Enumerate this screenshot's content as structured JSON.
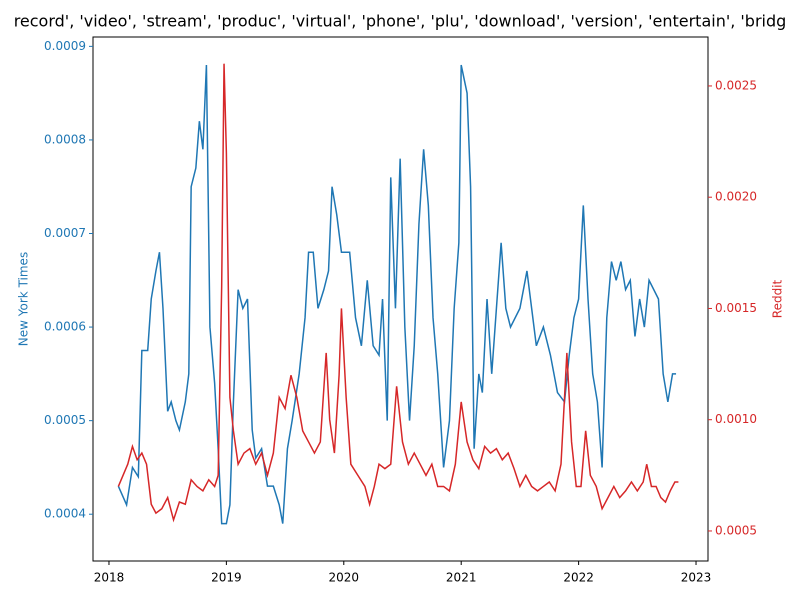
{
  "chart_data": {
    "type": "line",
    "title": "record', 'video', 'stream', 'produc', 'virtual', 'phone', 'plu', 'download', 'version', 'entertain', 'bridg",
    "y_label": "New York Times",
    "y2_label": "Reddit",
    "xlim": [
      2017.864,
      2023.102
    ],
    "xticks": [
      2018,
      2019,
      2020,
      2021,
      2022,
      2023
    ],
    "ylim": [
      0.00035,
      0.00091
    ],
    "yticks": [
      0.0004,
      0.0005,
      0.0006,
      0.0007,
      0.0008,
      0.0009
    ],
    "y2lim": [
      0.000365,
      0.00272
    ],
    "y2ticks": [
      {
        "value": 0.0005,
        "label": "0.0005"
      },
      {
        "value": 0.001,
        "label": "0.0010"
      },
      {
        "value": 0.0015,
        "label": "0.0015"
      },
      {
        "value": 0.002,
        "label": "0.0020"
      },
      {
        "value": 0.0025,
        "label": "0.0025"
      }
    ],
    "series": [
      {
        "name": "New York Times",
        "color": "#1f77b4",
        "axis": "y",
        "x": [
          2018.08,
          2018.15,
          2018.2,
          2018.25,
          2018.28,
          2018.33,
          2018.36,
          2018.4,
          2018.43,
          2018.46,
          2018.5,
          2018.53,
          2018.57,
          2018.6,
          2018.65,
          2018.68,
          2018.7,
          2018.74,
          2018.77,
          2018.8,
          2018.83,
          2018.86,
          2018.9,
          2018.93,
          2018.96,
          2019.0,
          2019.03,
          2019.06,
          2019.1,
          2019.14,
          2019.18,
          2019.22,
          2019.25,
          2019.3,
          2019.35,
          2019.4,
          2019.45,
          2019.48,
          2019.52,
          2019.56,
          2019.62,
          2019.67,
          2019.7,
          2019.74,
          2019.78,
          2019.83,
          2019.87,
          2019.9,
          2019.94,
          2019.98,
          2020.05,
          2020.1,
          2020.15,
          2020.2,
          2020.25,
          2020.3,
          2020.33,
          2020.37,
          2020.4,
          2020.44,
          2020.48,
          2020.52,
          2020.56,
          2020.6,
          2020.64,
          2020.68,
          2020.72,
          2020.76,
          2020.8,
          2020.85,
          2020.9,
          2020.94,
          2020.98,
          2021.0,
          2021.05,
          2021.08,
          2021.11,
          2021.15,
          2021.18,
          2021.22,
          2021.26,
          2021.3,
          2021.34,
          2021.38,
          2021.42,
          2021.5,
          2021.56,
          2021.6,
          2021.64,
          2021.7,
          2021.76,
          2021.82,
          2021.88,
          2021.92,
          2021.96,
          2022.0,
          2022.04,
          2022.08,
          2022.12,
          2022.16,
          2022.2,
          2022.24,
          2022.28,
          2022.32,
          2022.36,
          2022.4,
          2022.44,
          2022.48,
          2022.52,
          2022.56,
          2022.6,
          2022.64,
          2022.68,
          2022.72,
          2022.76,
          2022.8,
          2022.83
        ],
        "values": [
          0.00043,
          0.00041,
          0.00045,
          0.00044,
          0.000575,
          0.000575,
          0.00063,
          0.00066,
          0.00068,
          0.00062,
          0.00051,
          0.00052,
          0.0005,
          0.00049,
          0.00052,
          0.00055,
          0.00075,
          0.00077,
          0.00082,
          0.00079,
          0.00088,
          0.0006,
          0.00054,
          0.00047,
          0.00039,
          0.00039,
          0.00041,
          0.00052,
          0.00064,
          0.00062,
          0.00063,
          0.00049,
          0.00046,
          0.00047,
          0.00043,
          0.00043,
          0.00041,
          0.00039,
          0.00047,
          0.0005,
          0.00055,
          0.00061,
          0.00068,
          0.00068,
          0.00062,
          0.00064,
          0.00066,
          0.00075,
          0.00072,
          0.00068,
          0.00068,
          0.00061,
          0.00058,
          0.00065,
          0.00058,
          0.00057,
          0.00063,
          0.0005,
          0.00076,
          0.00062,
          0.00078,
          0.0006,
          0.0005,
          0.00058,
          0.00071,
          0.00079,
          0.00073,
          0.00061,
          0.00055,
          0.00045,
          0.0005,
          0.00062,
          0.00069,
          0.00088,
          0.00085,
          0.00075,
          0.00047,
          0.00055,
          0.00053,
          0.00063,
          0.00055,
          0.00062,
          0.00069,
          0.00062,
          0.0006,
          0.00062,
          0.00066,
          0.00062,
          0.00058,
          0.0006,
          0.00057,
          0.00053,
          0.00052,
          0.00057,
          0.00061,
          0.00063,
          0.00073,
          0.00063,
          0.00055,
          0.00052,
          0.00045,
          0.00061,
          0.00067,
          0.00065,
          0.00067,
          0.00064,
          0.00065,
          0.00059,
          0.00063,
          0.0006,
          0.00065,
          0.00064,
          0.00063,
          0.00055,
          0.00052,
          0.00055,
          0.00055
        ]
      },
      {
        "name": "Reddit",
        "color": "#d62728",
        "axis": "y2",
        "x": [
          2018.08,
          2018.12,
          2018.16,
          2018.2,
          2018.24,
          2018.28,
          2018.32,
          2018.36,
          2018.4,
          2018.45,
          2018.5,
          2018.55,
          2018.6,
          2018.65,
          2018.7,
          2018.75,
          2018.8,
          2018.85,
          2018.9,
          2018.93,
          2018.96,
          2018.98,
          2019.0,
          2019.03,
          2019.06,
          2019.1,
          2019.15,
          2019.2,
          2019.25,
          2019.3,
          2019.35,
          2019.4,
          2019.45,
          2019.5,
          2019.55,
          2019.6,
          2019.65,
          2019.7,
          2019.75,
          2019.8,
          2019.85,
          2019.88,
          2019.92,
          2019.96,
          2019.98,
          2020.02,
          2020.06,
          2020.12,
          2020.18,
          2020.22,
          2020.26,
          2020.3,
          2020.35,
          2020.4,
          2020.45,
          2020.5,
          2020.55,
          2020.6,
          2020.65,
          2020.7,
          2020.75,
          2020.8,
          2020.85,
          2020.9,
          2020.95,
          2021.0,
          2021.05,
          2021.1,
          2021.15,
          2021.2,
          2021.25,
          2021.3,
          2021.35,
          2021.4,
          2021.45,
          2021.5,
          2021.55,
          2021.6,
          2021.65,
          2021.7,
          2021.75,
          2021.8,
          2021.85,
          2021.9,
          2021.94,
          2021.98,
          2022.02,
          2022.06,
          2022.1,
          2022.15,
          2022.2,
          2022.25,
          2022.3,
          2022.35,
          2022.4,
          2022.45,
          2022.5,
          2022.55,
          2022.58,
          2022.62,
          2022.66,
          2022.7,
          2022.74,
          2022.78,
          2022.82,
          2022.85
        ],
        "values": [
          0.0007,
          0.00075,
          0.0008,
          0.00088,
          0.00082,
          0.00085,
          0.0008,
          0.00062,
          0.00058,
          0.0006,
          0.00065,
          0.00055,
          0.00063,
          0.00062,
          0.00073,
          0.0007,
          0.00068,
          0.00073,
          0.0007,
          0.00075,
          0.0016,
          0.0026,
          0.0022,
          0.0011,
          0.00095,
          0.0008,
          0.00085,
          0.00087,
          0.0008,
          0.00085,
          0.00075,
          0.00085,
          0.0011,
          0.00105,
          0.0012,
          0.0011,
          0.00095,
          0.0009,
          0.00085,
          0.0009,
          0.0013,
          0.001,
          0.00085,
          0.0012,
          0.0015,
          0.0011,
          0.0008,
          0.00075,
          0.0007,
          0.00062,
          0.0007,
          0.0008,
          0.00078,
          0.0008,
          0.00115,
          0.0009,
          0.0008,
          0.00085,
          0.0008,
          0.00075,
          0.0008,
          0.0007,
          0.0007,
          0.00068,
          0.0008,
          0.00108,
          0.0009,
          0.00082,
          0.00078,
          0.00088,
          0.00085,
          0.00087,
          0.00082,
          0.00085,
          0.00078,
          0.0007,
          0.00075,
          0.0007,
          0.00068,
          0.0007,
          0.00072,
          0.00068,
          0.0008,
          0.0013,
          0.0009,
          0.0007,
          0.0007,
          0.00095,
          0.00075,
          0.0007,
          0.0006,
          0.00065,
          0.0007,
          0.00065,
          0.00068,
          0.00072,
          0.00068,
          0.00072,
          0.0008,
          0.0007,
          0.0007,
          0.00065,
          0.00063,
          0.00068,
          0.00072,
          0.00072
        ]
      }
    ]
  }
}
